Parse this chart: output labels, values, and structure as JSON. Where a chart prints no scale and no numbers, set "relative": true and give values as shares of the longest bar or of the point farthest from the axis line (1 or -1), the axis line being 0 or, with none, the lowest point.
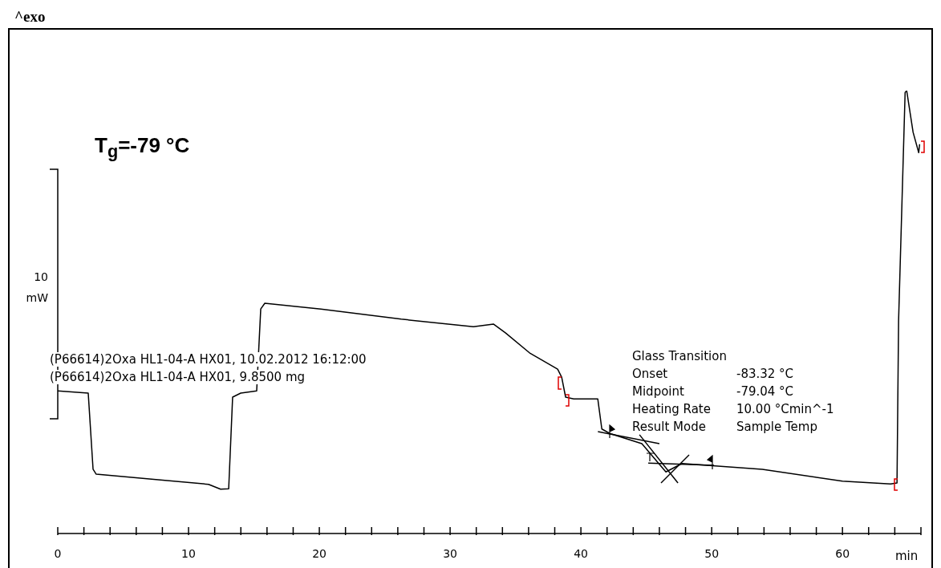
{
  "chart_data": {
    "type": "line",
    "relative": true,
    "xlabel": "min",
    "ylabel": "10 mW",
    "xlim": [
      0,
      66
    ],
    "xticks": [
      0,
      {
        "value": 2,
        "label": null
      },
      {
        "value": 4,
        "label": null
      },
      {
        "value": 6,
        "label": null
      },
      {
        "value": 8,
        "label": null
      },
      10,
      {
        "value": 12,
        "label": null
      },
      {
        "value": 14,
        "label": null
      },
      {
        "value": 16,
        "label": null
      },
      {
        "value": 18,
        "label": null
      },
      20,
      {
        "value": 22,
        "label": null
      },
      {
        "value": 24,
        "label": null
      },
      {
        "value": 26,
        "label": null
      },
      {
        "value": 28,
        "label": null
      },
      30,
      {
        "value": 32,
        "label": null
      },
      {
        "value": 34,
        "label": null
      },
      {
        "value": 36,
        "label": null
      },
      {
        "value": 38,
        "label": null
      },
      40,
      {
        "value": 42,
        "label": null
      },
      {
        "value": 44,
        "label": null
      },
      {
        "value": 46,
        "label": null
      },
      {
        "value": 48,
        "label": null
      },
      50,
      {
        "value": 52,
        "label": null
      },
      {
        "value": 54,
        "label": null
      },
      {
        "value": 56,
        "label": null
      },
      {
        "value": 58,
        "label": null
      },
      60,
      {
        "value": 62,
        "label": null
      },
      {
        "value": 64,
        "label": null
      },
      {
        "value": 66,
        "label": null
      }
    ],
    "annotations": [
      "^exo",
      "T$_{g}$=-79 °C",
      "(P66614)2Oxa HL1-04-A HX01, 10.02.2012 16:12:00",
      "(P66614)2Oxa HL1-04-A HX01, 9.8500 mg",
      "Glass Transition",
      "Onset\t-83.32 °C",
      "Midpoint\t-79.04 °C",
      "Heating Rate\t10.00 °Cmin^-1",
      "Result Mode\tSample Temp"
    ],
    "series": [
      {
        "color": "#000000",
        "x": [
          0,
          2.33,
          2.7,
          2.94,
          7.85,
          11.53,
          12.45,
          13.07,
          13.37,
          13.99,
          15.21,
          15.52,
          15.83,
          20.12,
          26.26,
          31.78,
          33.31,
          34.23,
          36.07,
          38.22,
          38.53,
          38.83,
          39.45,
          41.29,
          41.6,
          42.2,
          44.66,
          46.5,
          47.73,
          53.87,
          60.0,
          63.68,
          64.17,
          64.29,
          64.79,
          64.91,
          65.4,
          65.83,
          65.9
        ],
        "values": [
          0.322,
          0.317,
          0.145,
          0.134,
          0.121,
          0.111,
          0.1,
          0.101,
          0.308,
          0.317,
          0.322,
          0.507,
          0.52,
          0.507,
          0.484,
          0.467,
          0.473,
          0.453,
          0.408,
          0.371,
          0.353,
          0.308,
          0.304,
          0.304,
          0.236,
          0.226,
          0.203,
          0.139,
          0.158,
          0.145,
          0.118,
          0.112,
          0.114,
          0.48,
          0.996,
          1,
          0.906,
          0.86,
          0.879
        ]
      },
      {
        "color": "#000000",
        "x": [
          41.3,
          46.0
        ],
        "values": [
          0.23,
          0.203
        ]
      },
      {
        "color": "#000000",
        "x": [
          44.48,
          47.42
        ],
        "values": [
          0.223,
          0.114
        ]
      },
      {
        "color": "#000000",
        "x": [
          45.15,
          50.18
        ],
        "values": [
          0.159,
          0.154
        ]
      }
    ]
  }
}
